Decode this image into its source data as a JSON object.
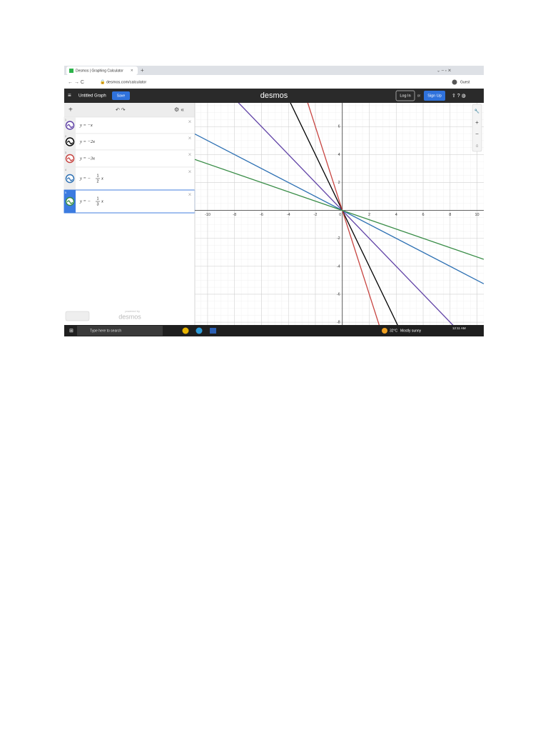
{
  "browser": {
    "tab_title": "Desmos | Graphing Calculator",
    "url": "desmos.com/calculator",
    "profile": "Guest"
  },
  "app": {
    "graph_title": "Untitled Graph",
    "save": "Save",
    "logo": "desmos",
    "log_in": "Log In",
    "or": "or",
    "sign_up": "Sign Up",
    "powered_by": "powered by",
    "powered_logo": "desmos"
  },
  "expressions": [
    {
      "index": "1",
      "text": "y = −x"
    },
    {
      "index": "2",
      "text": "y = −2x"
    },
    {
      "index": "3",
      "text": "y = −3x"
    },
    {
      "index": "4",
      "prefix": "y = −",
      "numerator": "1",
      "denominator": "2",
      "suffix": "x"
    },
    {
      "index": "5",
      "prefix": "y = −",
      "numerator": "1",
      "denominator": "3",
      "suffix": "x"
    }
  ],
  "chart_data": {
    "type": "line",
    "xlim": [
      -10.95,
      10.5
    ],
    "ylim": [
      -8.2,
      7.7
    ],
    "xticks": [
      -10,
      -8,
      -6,
      -4,
      -2,
      0,
      2,
      4,
      6,
      8,
      10
    ],
    "yticks": [
      -8,
      -6,
      -4,
      -2,
      2,
      4,
      6
    ],
    "grid": true,
    "series": [
      {
        "color": "#6042a6",
        "slope": -1
      },
      {
        "color": "#000000",
        "slope": -2
      },
      {
        "color": "#c74440",
        "slope": -3
      },
      {
        "color": "#2d70b3",
        "slope": -0.5
      },
      {
        "color": "#388c46",
        "slope": -0.3333
      }
    ]
  },
  "taskbar": {
    "search": "Type here to search",
    "temperature": "32°C",
    "weather": "Mostly sunny",
    "time": "12:11 AM"
  }
}
